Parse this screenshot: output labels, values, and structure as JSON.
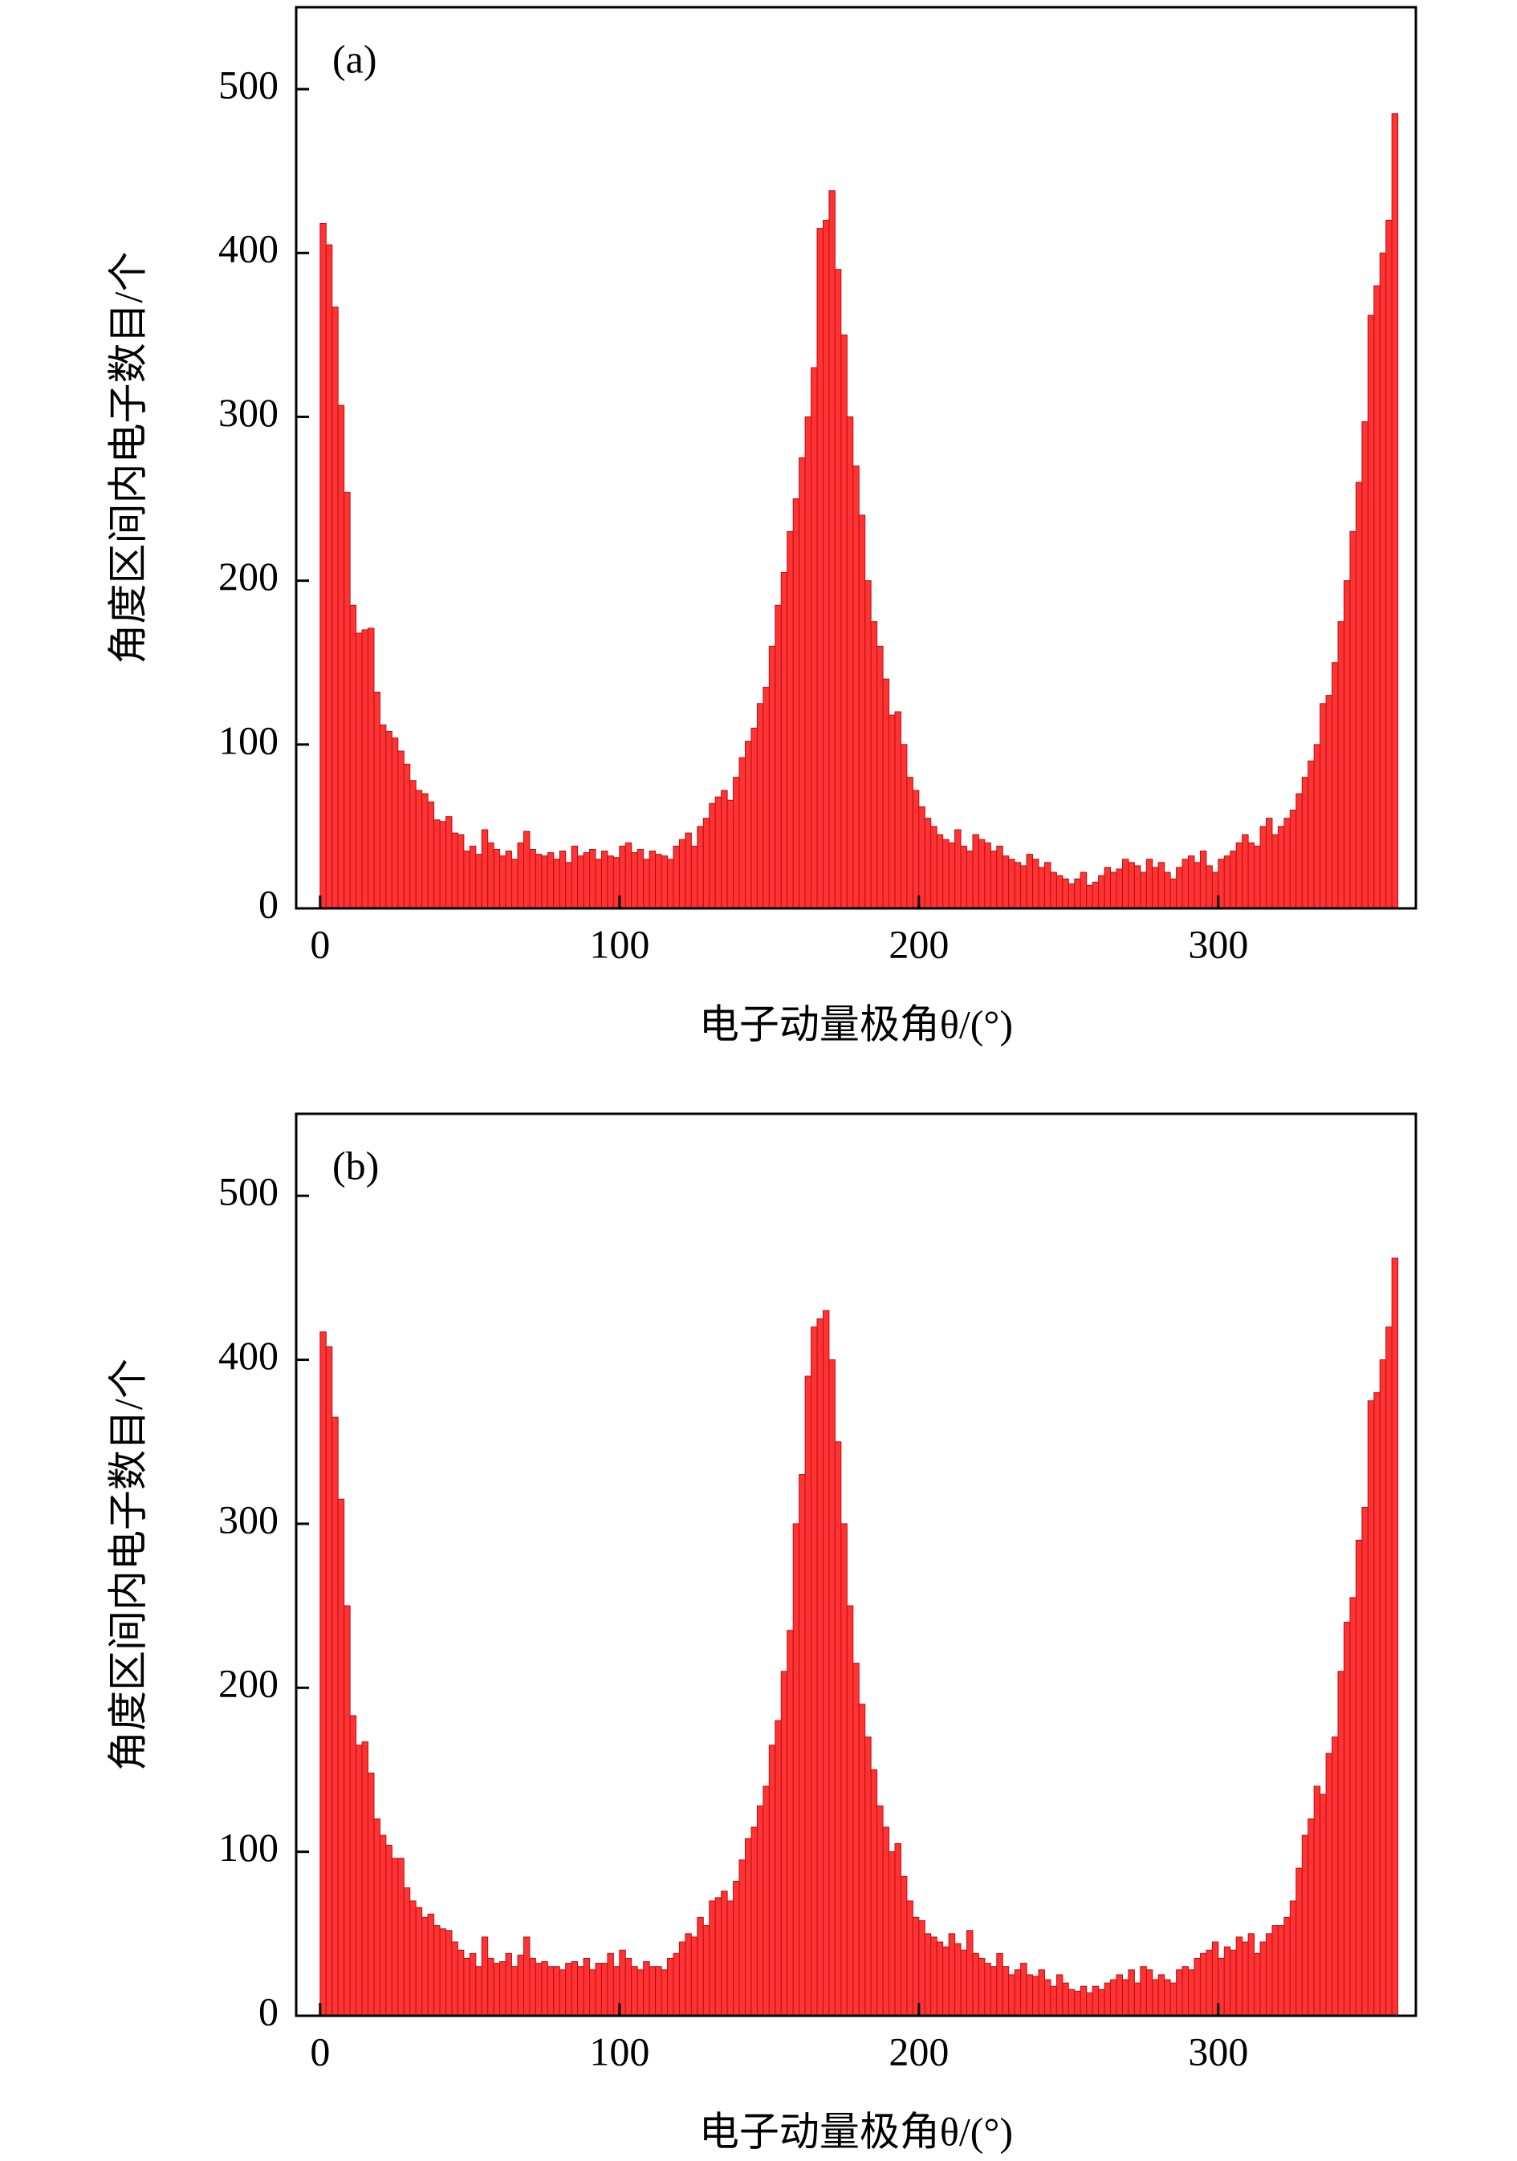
{
  "chart_data": [
    {
      "type": "histogram",
      "label": "(a)",
      "xlabel": "电子动量极角θ/(°)",
      "ylabel": "角度区间内电子数目/个",
      "color": "#ff3333",
      "edgecolor": "#b81010",
      "xlim": [
        -8,
        366
      ],
      "ylim": [
        0,
        550
      ],
      "xticks": [
        0,
        100,
        200,
        300
      ],
      "yticks": [
        0,
        100,
        200,
        300,
        400,
        500
      ],
      "bins": [
        0,
        2,
        4,
        6,
        8,
        10,
        12,
        14,
        16,
        18,
        20,
        22,
        24,
        26,
        28,
        30,
        32,
        34,
        36,
        38,
        40,
        42,
        44,
        46,
        48,
        50,
        52,
        54,
        56,
        58,
        60,
        62,
        64,
        66,
        68,
        70,
        72,
        74,
        76,
        78,
        80,
        82,
        84,
        86,
        88,
        90,
        92,
        94,
        96,
        98,
        100,
        102,
        104,
        106,
        108,
        110,
        112,
        114,
        116,
        118,
        120,
        122,
        124,
        126,
        128,
        130,
        132,
        134,
        136,
        138,
        140,
        142,
        144,
        146,
        148,
        150,
        152,
        154,
        156,
        158,
        160,
        162,
        164,
        166,
        168,
        170,
        172,
        174,
        176,
        178,
        180,
        182,
        184,
        186,
        188,
        190,
        192,
        194,
        196,
        198,
        200,
        202,
        204,
        206,
        208,
        210,
        212,
        214,
        216,
        218,
        220,
        222,
        224,
        226,
        228,
        230,
        232,
        234,
        236,
        238,
        240,
        242,
        244,
        246,
        248,
        250,
        252,
        254,
        256,
        258,
        260,
        262,
        264,
        266,
        268,
        270,
        272,
        274,
        276,
        278,
        280,
        282,
        284,
        286,
        288,
        290,
        292,
        294,
        296,
        298,
        300,
        302,
        304,
        306,
        308,
        310,
        312,
        314,
        316,
        318,
        320,
        322,
        324,
        326,
        328,
        330,
        332,
        334,
        336,
        338,
        340,
        342,
        344,
        346,
        348,
        350,
        352,
        354,
        356,
        358,
        360
      ],
      "values": [
        418,
        405,
        367,
        307,
        254,
        185,
        168,
        170,
        171,
        132,
        112,
        108,
        104,
        96,
        88,
        78,
        72,
        70,
        65,
        54,
        53,
        56,
        46,
        45,
        35,
        38,
        33,
        48,
        40,
        36,
        32,
        35,
        30,
        40,
        47,
        36,
        33,
        32,
        34,
        30,
        35,
        28,
        38,
        32,
        34,
        36,
        30,
        35,
        32,
        31,
        38,
        40,
        34,
        36,
        30,
        35,
        33,
        32,
        30,
        38,
        42,
        46,
        38,
        50,
        55,
        64,
        68,
        72,
        66,
        80,
        92,
        102,
        110,
        125,
        135,
        160,
        185,
        205,
        230,
        250,
        275,
        300,
        330,
        415,
        420,
        438,
        390,
        350,
        300,
        270,
        240,
        200,
        175,
        160,
        140,
        118,
        120,
        100,
        80,
        72,
        62,
        55,
        50,
        45,
        42,
        40,
        48,
        38,
        35,
        45,
        42,
        40,
        35,
        38,
        32,
        30,
        28,
        26,
        33,
        30,
        25,
        28,
        22,
        20,
        18,
        15,
        18,
        22,
        14,
        16,
        20,
        25,
        22,
        24,
        30,
        28,
        26,
        22,
        30,
        25,
        28,
        22,
        18,
        25,
        30,
        32,
        28,
        35,
        26,
        22,
        30,
        32,
        35,
        40,
        45,
        40,
        38,
        50,
        55,
        45,
        50,
        55,
        60,
        70,
        80,
        90,
        100,
        125,
        130,
        150,
        175,
        200,
        230,
        260,
        297,
        362,
        380,
        400,
        420,
        485
      ]
    },
    {
      "type": "histogram",
      "label": "(b)",
      "xlabel": "电子动量极角θ/(°)",
      "ylabel": "角度区间内电子数目/个",
      "color": "#ff3333",
      "edgecolor": "#b81010",
      "xlim": [
        -8,
        366
      ],
      "ylim": [
        0,
        550
      ],
      "xticks": [
        0,
        100,
        200,
        300
      ],
      "yticks": [
        0,
        100,
        200,
        300,
        400,
        500
      ],
      "bins": [
        0,
        2,
        4,
        6,
        8,
        10,
        12,
        14,
        16,
        18,
        20,
        22,
        24,
        26,
        28,
        30,
        32,
        34,
        36,
        38,
        40,
        42,
        44,
        46,
        48,
        50,
        52,
        54,
        56,
        58,
        60,
        62,
        64,
        66,
        68,
        70,
        72,
        74,
        76,
        78,
        80,
        82,
        84,
        86,
        88,
        90,
        92,
        94,
        96,
        98,
        100,
        102,
        104,
        106,
        108,
        110,
        112,
        114,
        116,
        118,
        120,
        122,
        124,
        126,
        128,
        130,
        132,
        134,
        136,
        138,
        140,
        142,
        144,
        146,
        148,
        150,
        152,
        154,
        156,
        158,
        160,
        162,
        164,
        166,
        168,
        170,
        172,
        174,
        176,
        178,
        180,
        182,
        184,
        186,
        188,
        190,
        192,
        194,
        196,
        198,
        200,
        202,
        204,
        206,
        208,
        210,
        212,
        214,
        216,
        218,
        220,
        222,
        224,
        226,
        228,
        230,
        232,
        234,
        236,
        238,
        240,
        242,
        244,
        246,
        248,
        250,
        252,
        254,
        256,
        258,
        260,
        262,
        264,
        266,
        268,
        270,
        272,
        274,
        276,
        278,
        280,
        282,
        284,
        286,
        288,
        290,
        292,
        294,
        296,
        298,
        300,
        302,
        304,
        306,
        308,
        310,
        312,
        314,
        316,
        318,
        320,
        322,
        324,
        326,
        328,
        330,
        332,
        334,
        336,
        338,
        340,
        342,
        344,
        346,
        348,
        350,
        352,
        354,
        356,
        358,
        360
      ],
      "values": [
        417,
        408,
        365,
        315,
        250,
        183,
        165,
        167,
        148,
        120,
        110,
        104,
        96,
        96,
        78,
        70,
        66,
        60,
        62,
        55,
        53,
        52,
        45,
        40,
        35,
        38,
        30,
        48,
        35,
        32,
        33,
        38,
        30,
        37,
        48,
        35,
        32,
        33,
        30,
        30,
        28,
        32,
        33,
        30,
        35,
        28,
        32,
        32,
        38,
        30,
        40,
        35,
        30,
        28,
        33,
        30,
        30,
        28,
        35,
        38,
        45,
        50,
        48,
        60,
        55,
        70,
        72,
        76,
        70,
        82,
        95,
        108,
        115,
        128,
        140,
        165,
        180,
        210,
        235,
        300,
        330,
        390,
        420,
        425,
        430,
        400,
        350,
        300,
        250,
        215,
        190,
        170,
        150,
        128,
        115,
        100,
        105,
        85,
        70,
        60,
        58,
        50,
        48,
        45,
        42,
        50,
        44,
        40,
        52,
        38,
        35,
        32,
        30,
        38,
        30,
        25,
        28,
        32,
        25,
        24,
        28,
        22,
        18,
        25,
        20,
        16,
        15,
        18,
        14,
        18,
        16,
        20,
        22,
        25,
        22,
        28,
        20,
        30,
        28,
        22,
        25,
        22,
        20,
        28,
        30,
        28,
        35,
        38,
        40,
        45,
        35,
        42,
        40,
        48,
        45,
        50,
        38,
        45,
        50,
        55,
        55,
        60,
        70,
        90,
        110,
        120,
        140,
        135,
        160,
        170,
        210,
        240,
        255,
        290,
        310,
        375,
        380,
        400,
        420,
        462
      ]
    }
  ]
}
